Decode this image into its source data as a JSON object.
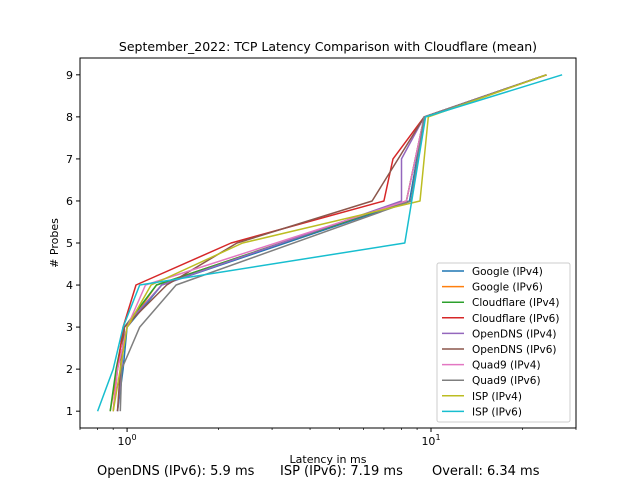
{
  "chart_data": {
    "type": "line",
    "title": "September_2022: TCP Latency Comparison with Cloudflare (mean)",
    "xlabel": "Latency in ms",
    "ylabel": "# Probes",
    "xscale": "log",
    "xlim": [
      0.7,
      30
    ],
    "ylim": [
      0.6,
      9.4
    ],
    "x_tick_labels": [
      "10^0",
      "10^1"
    ],
    "y_ticks": [
      1,
      2,
      3,
      4,
      5,
      6,
      7,
      8,
      9
    ],
    "grid": false,
    "legend_position": "lower right",
    "series": [
      {
        "name": "Google (IPv4)",
        "color": "#1f77b4",
        "x": [
          0.93,
          0.97,
          1.0,
          1.3,
          8.5,
          9.5,
          24.0
        ],
        "y": [
          1,
          2,
          3,
          4,
          6,
          8,
          9
        ]
      },
      {
        "name": "Google (IPv6)",
        "color": "#ff7f0e",
        "x": [
          0.88,
          0.93,
          1.0,
          1.25,
          8.3,
          9.5,
          24.0
        ],
        "y": [
          1,
          2,
          3,
          4,
          6,
          8,
          9
        ]
      },
      {
        "name": "Cloudflare (IPv4)",
        "color": "#2ca02c",
        "x": [
          0.88,
          0.92,
          0.98,
          1.25,
          8.3,
          9.5,
          24.0
        ],
        "y": [
          1,
          2,
          3,
          4,
          6,
          8,
          9
        ]
      },
      {
        "name": "Cloudflare (IPv6)",
        "color": "#d62728",
        "x": [
          0.9,
          0.93,
          0.97,
          1.07,
          2.2,
          7.0,
          7.5,
          9.5,
          24.0
        ],
        "y": [
          1,
          2,
          3,
          4,
          5,
          6,
          7,
          8,
          9
        ]
      },
      {
        "name": "OpenDNS (IPv4)",
        "color": "#9467bd",
        "x": [
          0.93,
          0.96,
          0.98,
          1.3,
          8.0,
          8.0,
          9.5,
          24.0
        ],
        "y": [
          1,
          2,
          3,
          4,
          6,
          7,
          8,
          9
        ]
      },
      {
        "name": "OpenDNS (IPv6)",
        "color": "#8c564b",
        "x": [
          0.93,
          0.95,
          0.98,
          1.35,
          2.3,
          6.4,
          9.5,
          24.0
        ],
        "y": [
          1,
          2,
          3,
          4,
          5,
          6,
          8,
          9
        ]
      },
      {
        "name": "Quad9 (IPv4)",
        "color": "#e377c2",
        "x": [
          0.9,
          0.93,
          1.0,
          1.15,
          8.3,
          9.5,
          24.0
        ],
        "y": [
          1,
          2,
          3,
          4,
          6,
          8,
          9
        ]
      },
      {
        "name": "Quad9 (IPv6)",
        "color": "#7f7f7f",
        "x": [
          0.95,
          0.96,
          1.1,
          1.45,
          8.6,
          9.5,
          24.0
        ],
        "y": [
          1,
          2,
          3,
          4,
          6,
          8,
          9
        ]
      },
      {
        "name": "ISP (IPv4)",
        "color": "#bcbd22",
        "x": [
          0.9,
          0.95,
          1.0,
          1.2,
          2.4,
          9.2,
          9.8,
          24.0
        ],
        "y": [
          1,
          2,
          3,
          4,
          5,
          6,
          8,
          9
        ]
      },
      {
        "name": "ISP (IPv6)",
        "color": "#17becf",
        "x": [
          0.8,
          0.9,
          0.97,
          1.1,
          8.2,
          9.6,
          27.0
        ],
        "y": [
          1,
          2,
          3,
          4,
          5,
          8,
          9
        ]
      }
    ]
  },
  "footer": {
    "opendns_ipv6": "OpenDNS (IPv6): 5.9 ms",
    "isp_ipv6": "ISP (IPv6): 7.19 ms",
    "overall": "Overall: 6.34 ms"
  }
}
